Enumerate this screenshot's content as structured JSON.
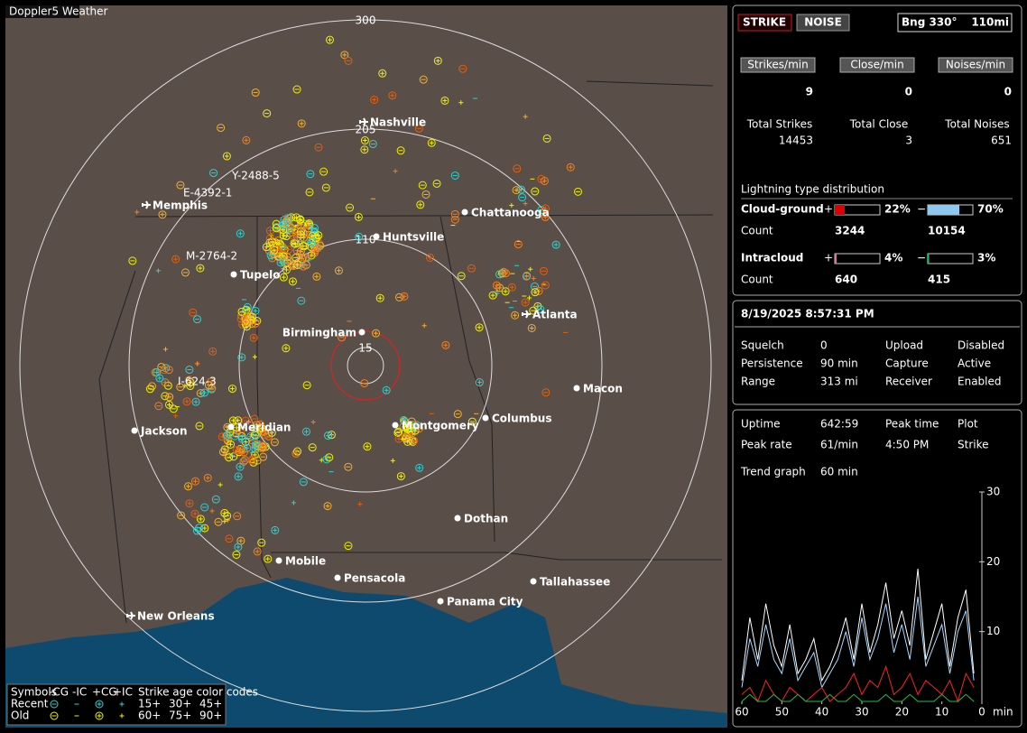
{
  "map": {
    "label": "Doppler5 Weather",
    "range_rings": [
      "300",
      "205",
      "110",
      "15"
    ],
    "storm_labels": [
      "Y-2488-5",
      "E-4392-1",
      "M-2764-2",
      "I-624-3"
    ],
    "cities": [
      {
        "name": "Nashville",
        "airport": true
      },
      {
        "name": "Memphis",
        "airport": true
      },
      {
        "name": "Chattanooga",
        "airport": false
      },
      {
        "name": "Huntsville",
        "airport": false
      },
      {
        "name": "Tupelo",
        "airport": false
      },
      {
        "name": "Atlanta",
        "airport": true
      },
      {
        "name": "Birmingham",
        "airport": false
      },
      {
        "name": "Macon",
        "airport": false
      },
      {
        "name": "Jackson",
        "airport": false
      },
      {
        "name": "Meridian",
        "airport": false
      },
      {
        "name": "Montgomery",
        "airport": false
      },
      {
        "name": "Columbus",
        "airport": false
      },
      {
        "name": "Dothan",
        "airport": false
      },
      {
        "name": "Mobile",
        "airport": false
      },
      {
        "name": "Pensacola",
        "airport": false
      },
      {
        "name": "Tallahassee",
        "airport": false
      },
      {
        "name": "Panama City",
        "airport": false
      },
      {
        "name": "New Orleans",
        "airport": true
      }
    ],
    "legend": {
      "header": [
        "Symbols",
        "-CG",
        "-IC",
        "+CG",
        "+IC"
      ],
      "age_title": "Strike age color codes",
      "rows": [
        {
          "label": "Recent",
          "ages": [
            "15+",
            "30+",
            "45+"
          ]
        },
        {
          "label": "Old",
          "ages": [
            "60+",
            "75+",
            "90+"
          ]
        }
      ]
    }
  },
  "status": {
    "strike_button": "STRIKE",
    "noise_button": "NOISE",
    "bearing": "Bng 330°",
    "range": "110mi",
    "rates": [
      {
        "label": "Strikes/min",
        "value": 9,
        "total_label": "Total Strikes",
        "total": 14453
      },
      {
        "label": "Close/min",
        "value": 0,
        "total_label": "Total Close",
        "total": 3
      },
      {
        "label": "Noises/min",
        "value": 0,
        "total_label": "Total Noises",
        "total": 651
      }
    ],
    "distribution": {
      "title": "Lightning type distribution",
      "count_label": "Count",
      "rows": [
        {
          "label": "Cloud-ground",
          "pos": {
            "sign": "+",
            "value": 22,
            "value_label": "22%",
            "color": "#e00000",
            "count": 3244
          },
          "neg": {
            "sign": "−",
            "value": 70,
            "value_label": "70%",
            "color": "#8cc8f0",
            "count": 10154
          }
        },
        {
          "label": "Intracloud",
          "pos": {
            "sign": "+",
            "value": 4,
            "value_label": "4%",
            "color": "#e070a0",
            "count": 640
          },
          "neg": {
            "sign": "−",
            "value": 3,
            "value_label": "3%",
            "color": "#20c060",
            "count": 415
          }
        }
      ]
    }
  },
  "settings": {
    "datetime": "8/19/2025 8:57:31 PM",
    "rows": [
      [
        "Squelch",
        "0",
        "Upload",
        "Disabled"
      ],
      [
        "Persistence",
        "90 min",
        "Capture",
        "Active"
      ],
      [
        "Range",
        "313 mi",
        "Receiver",
        "Enabled"
      ]
    ]
  },
  "stats": {
    "rows": [
      [
        "Uptime",
        "642:59",
        "Peak time",
        "Plot"
      ],
      [
        "Peak rate",
        "61/min",
        "4:50 PM",
        "Strike"
      ]
    ],
    "trend_label": "Trend graph",
    "trend_window": "60 min"
  },
  "chart_data": {
    "type": "line",
    "x_unit": "min",
    "x": [
      60,
      58,
      56,
      54,
      52,
      50,
      48,
      46,
      44,
      42,
      40,
      38,
      36,
      34,
      32,
      30,
      28,
      26,
      24,
      22,
      20,
      18,
      16,
      14,
      12,
      10,
      8,
      6,
      4,
      2
    ],
    "xlim": [
      60,
      0
    ],
    "xticks": [
      60,
      50,
      40,
      30,
      20,
      10,
      0
    ],
    "ylim": [
      0,
      30
    ],
    "yticks": [
      10,
      20,
      30
    ],
    "series": [
      {
        "color": "#ffffff",
        "values": [
          3,
          12,
          6,
          14,
          8,
          5,
          11,
          4,
          6,
          9,
          3,
          5,
          8,
          12,
          6,
          14,
          7,
          11,
          17,
          9,
          13,
          8,
          19,
          6,
          10,
          14,
          5,
          12,
          16,
          4
        ]
      },
      {
        "color": "#a8d8ff",
        "values": [
          2,
          9,
          5,
          11,
          6,
          4,
          9,
          3,
          5,
          7,
          2,
          4,
          6,
          10,
          5,
          12,
          6,
          9,
          14,
          7,
          11,
          6,
          15,
          5,
          8,
          11,
          4,
          10,
          13,
          3
        ]
      },
      {
        "color": "#ff2020",
        "values": [
          1,
          2,
          0,
          3,
          1,
          0,
          2,
          1,
          0,
          1,
          2,
          0,
          1,
          2,
          4,
          1,
          3,
          2,
          5,
          1,
          2,
          4,
          1,
          3,
          2,
          1,
          3,
          0,
          4,
          2
        ]
      },
      {
        "color": "#20c040",
        "values": [
          0,
          1,
          0,
          0,
          1,
          0,
          0,
          1,
          0,
          0,
          0,
          1,
          0,
          0,
          1,
          0,
          0,
          0,
          1,
          0,
          0,
          1,
          0,
          0,
          0,
          1,
          0,
          0,
          1,
          0
        ]
      }
    ]
  }
}
